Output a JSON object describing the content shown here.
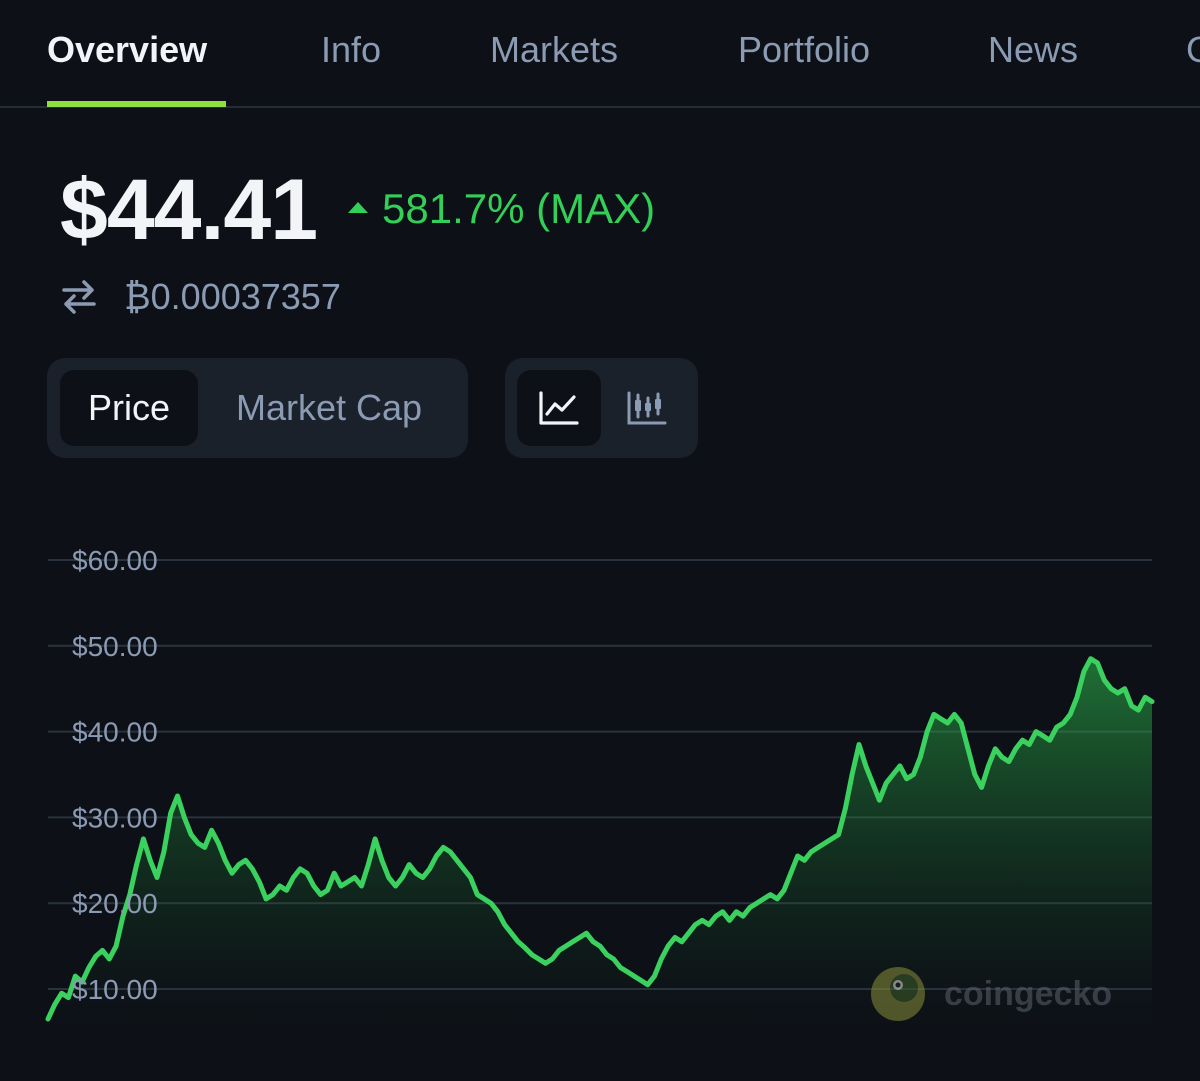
{
  "tabs": [
    {
      "label": "Overview",
      "active": true
    },
    {
      "label": "Info"
    },
    {
      "label": "Markets"
    },
    {
      "label": "Portfolio"
    },
    {
      "label": "News"
    },
    {
      "label": "C"
    }
  ],
  "price": {
    "value": "$44.41",
    "change": "581.7% (MAX)",
    "btc_value": "₿0.00037357"
  },
  "metric_toggle": {
    "options": [
      "Price",
      "Market Cap"
    ],
    "selected": "Price"
  },
  "view_toggle": {
    "options": [
      "line-chart-icon",
      "candlestick-chart-icon"
    ],
    "selected": "line-chart-icon"
  },
  "colors": {
    "background": "#0d1117",
    "accent": "#8ee03f",
    "positive": "#33d058",
    "muted": "#8b9bb4"
  },
  "watermark": {
    "text": "coingecko",
    "icon": "coingecko-logo-icon"
  },
  "chart_data": {
    "type": "area",
    "y_tick_labels": [
      "$60.00",
      "$50.00",
      "$40.00",
      "$30.00",
      "$20.00",
      "$10.00"
    ],
    "y_ticks": [
      60,
      50,
      40,
      30,
      20,
      10
    ],
    "ylim": [
      6,
      66
    ],
    "grid": true,
    "legend": "none",
    "series": [
      {
        "values": [
          6.5,
          8.2,
          9.5,
          9.0,
          11.5,
          10.8,
          12.5,
          13.8,
          14.5,
          13.5,
          15.0,
          18.5,
          21.0,
          24.5,
          27.5,
          25.0,
          23.0,
          26.0,
          30.5,
          32.5,
          30.0,
          28.0,
          27.0,
          26.5,
          28.5,
          27.0,
          25.0,
          23.5,
          24.5,
          25.0,
          24.0,
          22.5,
          20.5,
          21.0,
          22.0,
          21.5,
          23.0,
          24.0,
          23.5,
          22.0,
          21.0,
          21.5,
          23.5,
          22.0,
          22.5,
          23.0,
          22.0,
          24.5,
          27.5,
          25.0,
          23.0,
          22.0,
          23.0,
          24.5,
          23.5,
          23.0,
          24.0,
          25.5,
          26.5,
          26.0,
          25.0,
          24.0,
          23.0,
          21.0,
          20.5,
          20.0,
          19.0,
          17.5,
          16.5,
          15.5,
          14.8,
          14.0,
          13.5,
          13.0,
          13.5,
          14.5,
          15.0,
          15.5,
          16.0,
          16.5,
          15.5,
          15.0,
          14.0,
          13.5,
          12.5,
          12.0,
          11.5,
          11.0,
          10.5,
          11.5,
          13.5,
          15.0,
          16.0,
          15.5,
          16.5,
          17.5,
          18.0,
          17.5,
          18.5,
          19.0,
          18.0,
          19.0,
          18.5,
          19.5,
          20.0,
          20.5,
          21.0,
          20.5,
          21.5,
          23.5,
          25.5,
          25.0,
          26.0,
          26.5,
          27.0,
          27.5,
          28.0,
          31.0,
          35.0,
          38.5,
          36.0,
          34.0,
          32.0,
          34.0,
          35.0,
          36.0,
          34.5,
          35.0,
          37.0,
          40.0,
          42.0,
          41.5,
          41.0,
          42.0,
          41.0,
          38.0,
          35.0,
          33.5,
          36.0,
          38.0,
          37.0,
          36.5,
          38.0,
          39.0,
          38.5,
          40.0,
          39.5,
          39.0,
          40.5,
          41.0,
          42.0,
          44.0,
          47.0,
          48.5,
          48.0,
          46.0,
          45.0,
          44.5,
          45.0,
          43.0,
          42.5,
          44.0,
          43.5
        ]
      }
    ]
  }
}
